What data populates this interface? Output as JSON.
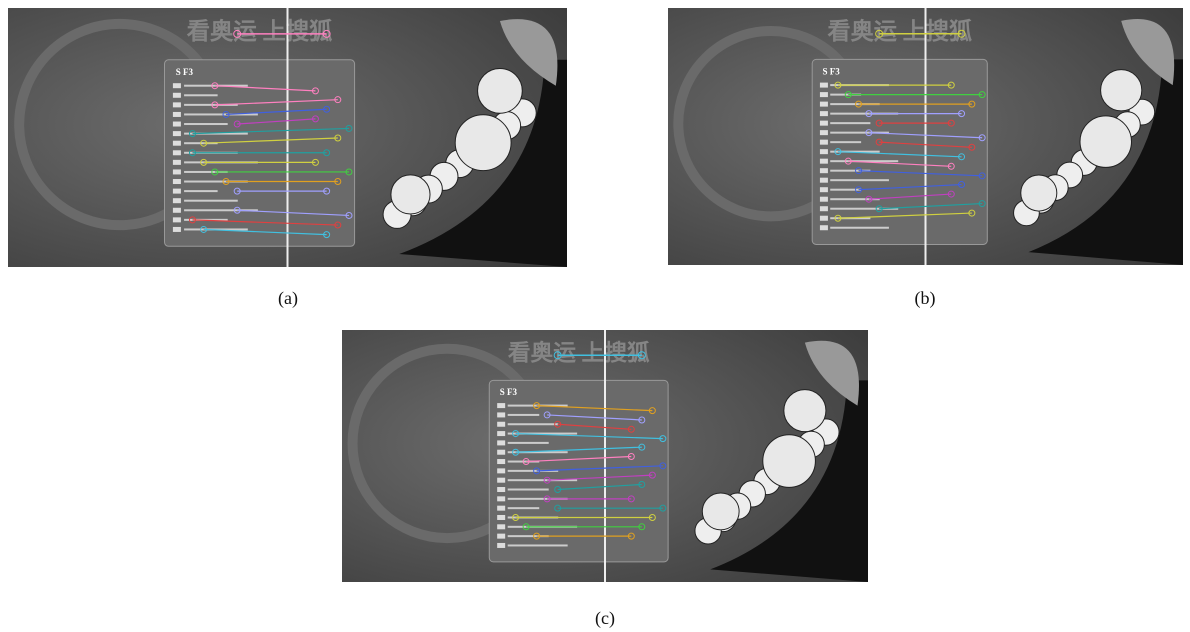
{
  "figure": {
    "banner_text": "看奥运 上搜狐",
    "menu_title": "S F3",
    "panels": [
      {
        "label": "(a)"
      },
      {
        "label": "(b)"
      },
      {
        "label": "(c)"
      }
    ]
  }
}
